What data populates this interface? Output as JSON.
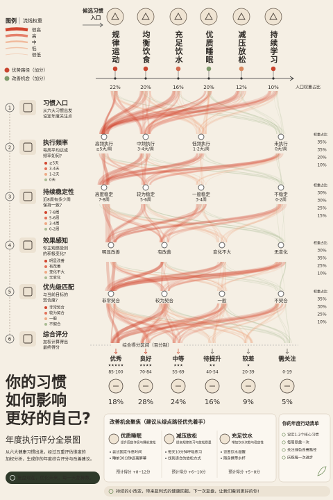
{
  "legend": {
    "title": "图例",
    "subtitle": "流线权重",
    "levels": [
      "很高",
      "高",
      "中",
      "低",
      "很低"
    ],
    "advantage": "优势路径（加分）",
    "opportunity": "改善机会（加分）"
  },
  "entry": {
    "label": [
      "候选习惯",
      "入口"
    ],
    "axis_label": "入口权重占比",
    "habits": [
      {
        "name": "规律运动",
        "share": "22%"
      },
      {
        "name": "均衡饮食",
        "share": "20%"
      },
      {
        "name": "充足饮水",
        "share": "16%"
      },
      {
        "name": "优质睡眠",
        "share": "20%"
      },
      {
        "name": "减压放松",
        "share": "12%"
      },
      {
        "name": "持续学习",
        "share": "10%"
      }
    ]
  },
  "steps": [
    {
      "number": "1",
      "title": "习惯入口",
      "desc": [
        "从六大习惯出发",
        "设定年度关注点"
      ]
    },
    {
      "number": "2",
      "title": "执行频率",
      "desc": [
        "每周平均达成",
        "频率如何?"
      ],
      "options": [
        "≥5天",
        "3-4天",
        "1-2天",
        "0天"
      ],
      "nodes": [
        {
          "name": "高频执行",
          "detail": "≥5天/周"
        },
        {
          "name": "中频执行",
          "detail": "3-4天/周"
        },
        {
          "name": "低频执行",
          "detail": "1-2天/周"
        },
        {
          "name": "未执行",
          "detail": "0天/周"
        }
      ],
      "weight_label": "权重占比",
      "weights": [
        "35%",
        "35%",
        "20%",
        "10%"
      ]
    },
    {
      "number": "3",
      "title": "持续稳定性",
      "desc": [
        "近8周有多少周",
        "保持一致?"
      ],
      "options": [
        "7-8周",
        "5-6周",
        "3-4周",
        "0-2周"
      ],
      "nodes": [
        {
          "name": "高度稳定",
          "detail": "7-8周"
        },
        {
          "name": "较为稳定",
          "detail": "5-6周"
        },
        {
          "name": "一般稳定",
          "detail": "3-4周"
        },
        {
          "name": "不稳定",
          "detail": "0-2周"
        }
      ],
      "weight_label": "权重占比",
      "weights": [
        "30%",
        "30%",
        "25%",
        "15%"
      ]
    },
    {
      "number": "4",
      "title": "效果感知",
      "desc": [
        "你主观感受到",
        "的积极变化?"
      ],
      "options": [
        "明显改善",
        "有改善",
        "变化不大",
        "无变化"
      ],
      "nodes": [
        {
          "name": "明显改善"
        },
        {
          "name": "有改善"
        },
        {
          "name": "变化不大"
        },
        {
          "name": "无变化"
        }
      ],
      "weight_label": "权重占比",
      "weights": [
        "30%",
        "35%",
        "25%",
        "10%"
      ]
    },
    {
      "number": "5",
      "title": "优先级匹配",
      "desc": [
        "与当前目标的",
        "契合度?"
      ],
      "options": [
        "非常契合",
        "较为契合",
        "一般",
        "不契合"
      ],
      "nodes": [
        {
          "name": "非常契合"
        },
        {
          "name": "较为契合"
        },
        {
          "name": "一般"
        },
        {
          "name": "不契合"
        }
      ],
      "weight_label": "权重占比",
      "weights": [
        "35%",
        "30%",
        "25%",
        "10%"
      ]
    },
    {
      "number": "6",
      "title": "综合评分",
      "desc": [
        "加权计算得出",
        "最终得分"
      ]
    }
  ],
  "score": {
    "label": "综合得分区间（百分制）",
    "grades": [
      {
        "name": "优秀",
        "stars": "★★★★★",
        "range": "85-100",
        "share": "18%"
      },
      {
        "name": "良好",
        "stars": "★★★★",
        "range": "70-84",
        "share": "28%"
      },
      {
        "name": "中等",
        "stars": "★★★",
        "range": "55-69",
        "share": "24%"
      },
      {
        "name": "待提升",
        "stars": "★★",
        "range": "40-54",
        "share": "16%"
      },
      {
        "name": "较差",
        "stars": "★",
        "range": "20-39",
        "share": "9%"
      },
      {
        "name": "需关注",
        "range": "0-19",
        "share": "5%"
      }
    ]
  },
  "headline": {
    "lines": [
      "你的习惯",
      "如何影响",
      "更好的自己?"
    ],
    "subtitle": "年度执行评分全景图",
    "description": [
      "从六大健康习惯出发，经过五重评估维度的",
      "加权分析，生成你的年度综合评分与改善建议。"
    ],
    "button": "复盘现在，优化未来，每一天都算数。"
  },
  "improvement": {
    "title": "改善机会聚焦（建议从绿点路径优先着手）",
    "cards": [
      {
        "name": "优质睡眠",
        "sub": "提升固定作息与睡前放松",
        "tips": [
          "尝试固定作息时间",
          "睡前30分钟远离屏幕"
        ],
        "estimate": "预计得分 +8~12分"
      },
      {
        "name": "减压放松",
        "sub": "提高规律练习与放松质量",
        "tips": [
          "每天10分钟呼吸练习",
          "找到适合的放松方式"
        ],
        "estimate": "预计得分 +6~10分"
      },
      {
        "name": "充足饮水",
        "sub": "增加饮水次数与稳定性",
        "tips": [
          "设置饮水提醒",
          "随身携带水杯"
        ],
        "estimate": "预计得分 +5~8分"
      }
    ]
  },
  "checklist": {
    "title": "你的年度行动清单",
    "items": [
      "设定1-2个核心习惯",
      "每周复盘一次",
      "关注绿色改善路径",
      "庆祝每一次进步"
    ]
  },
  "footer": "持续的小改变，带来复利式的健康回报。下一次复盘，让我们看到更好的你!"
}
